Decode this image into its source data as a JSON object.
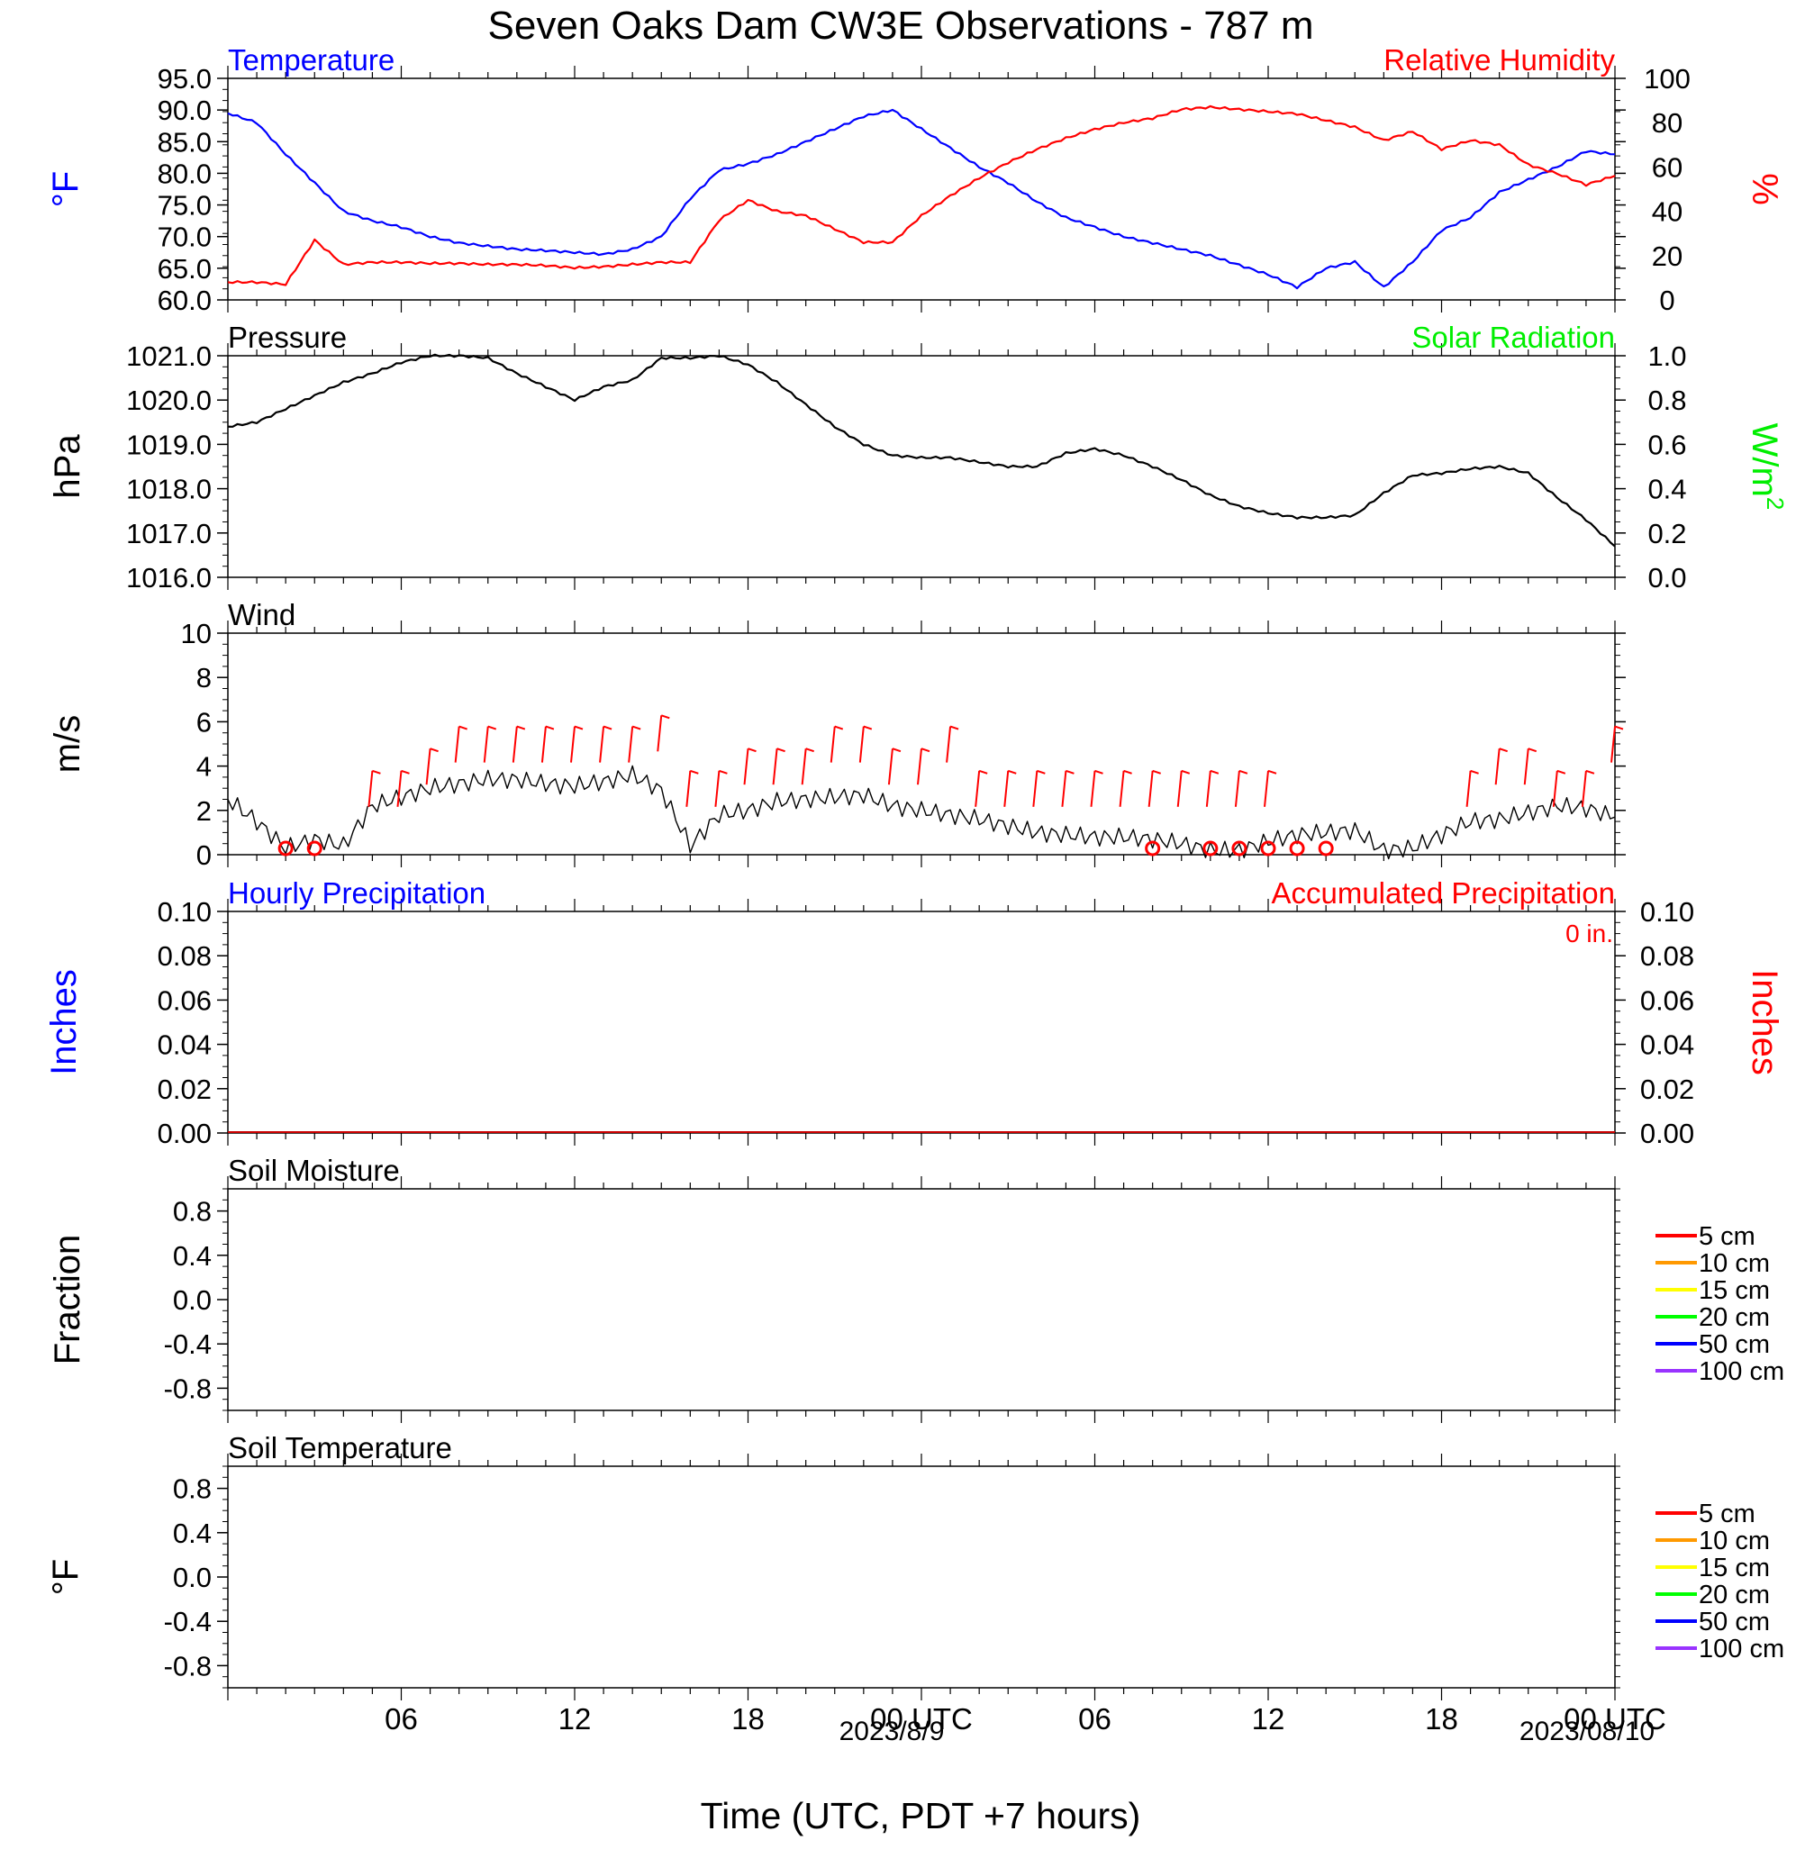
{
  "title": "Seven Oaks Dam CW3E Observations - 787 m",
  "xlabel": "Time (UTC, PDT +7 hours)",
  "colors": {
    "temperature": "#0000ff",
    "humidity": "#ff0000",
    "pressure": "#000000",
    "solar": "#00ee00",
    "wind": "#000000",
    "barb": "#ff0000",
    "accum": "#cc0000",
    "s5": "#ff0000",
    "s10": "#ff9900",
    "s15": "#ffff00",
    "s20": "#00ff00",
    "s50": "#0000ff",
    "s100": "#9933ff"
  },
  "x_ticks": [
    "06",
    "12",
    "18",
    "00 UTC",
    "06",
    "12",
    "18",
    "00 UTC"
  ],
  "date_labels": [
    "2023/8/9",
    "2023/08/10"
  ],
  "chart_data": [
    {
      "type": "line",
      "title_left": "Temperature",
      "title_right": "Relative Humidity",
      "ylabel_left": "°F",
      "ylabel_right": "%",
      "ylim": [
        60,
        95
      ],
      "ylim_right": [
        0,
        100
      ],
      "yticks_left": [
        "95.0",
        "90.0",
        "85.0",
        "80.0",
        "75.0",
        "70.0",
        "65.0",
        "60.0"
      ],
      "yticks_right": [
        "100",
        "80",
        "60",
        "40",
        "20",
        "0"
      ],
      "x_hours": [
        0,
        1,
        2,
        3,
        4,
        5,
        6,
        7,
        8,
        9,
        10,
        11,
        12,
        13,
        14,
        15,
        16,
        17,
        18,
        19,
        20,
        21,
        22,
        23,
        24,
        25,
        26,
        27,
        28,
        29,
        30,
        31,
        32,
        33,
        34,
        35,
        36,
        37,
        38,
        39,
        40,
        41,
        42,
        43,
        44,
        45,
        46,
        47,
        48
      ],
      "series": [
        {
          "name": "Temperature",
          "axis": "left",
          "values": [
            89.5,
            88,
            83,
            78.5,
            74,
            72.5,
            71.5,
            70,
            69,
            68.5,
            68,
            67.8,
            67.5,
            67.2,
            68,
            70,
            76,
            80.5,
            81.5,
            83,
            85,
            87,
            89,
            90,
            87,
            84,
            81,
            78.5,
            75.5,
            73,
            71.5,
            70,
            69,
            68,
            67,
            65.5,
            64,
            62,
            65,
            66,
            62,
            66,
            71,
            73,
            77,
            79,
            81,
            83.5,
            83
          ]
        },
        {
          "name": "Relative Humidity",
          "axis": "right",
          "values": [
            8,
            8,
            7,
            27,
            16,
            17,
            17,
            16.5,
            16.5,
            16,
            16,
            15.5,
            14.5,
            15,
            16,
            17,
            17,
            36,
            45,
            40,
            38,
            32,
            26,
            26,
            38,
            47,
            55,
            62,
            68,
            73,
            77,
            80,
            82,
            86,
            87,
            86,
            85,
            84,
            81,
            78,
            72,
            76,
            68,
            72,
            70,
            61,
            57,
            52,
            56
          ]
        }
      ]
    },
    {
      "type": "line",
      "title_left": "Pressure",
      "title_right": "Solar Radiation",
      "ylabel_left": "hPa",
      "ylabel_right": "W/m",
      "ylabel_right_superscript": "2",
      "ylim": [
        1016,
        1021
      ],
      "ylim_right": [
        0,
        1
      ],
      "yticks_left": [
        "1021.0",
        "1020.0",
        "1019.0",
        "1018.0",
        "1017.0",
        "1016.0"
      ],
      "yticks_right": [
        "1.0",
        "0.8",
        "0.6",
        "0.4",
        "0.2",
        "0.0"
      ],
      "x_hours": [
        0,
        1,
        2,
        3,
        4,
        5,
        6,
        7,
        8,
        9,
        10,
        11,
        12,
        13,
        14,
        15,
        16,
        17,
        18,
        19,
        20,
        21,
        22,
        23,
        24,
        25,
        26,
        27,
        28,
        29,
        30,
        31,
        32,
        33,
        34,
        35,
        36,
        37,
        38,
        39,
        40,
        41,
        42,
        43,
        44,
        45,
        46,
        47,
        48
      ],
      "series": [
        {
          "name": "Pressure",
          "axis": "left",
          "values": [
            1019.4,
            1019.5,
            1019.8,
            1020.1,
            1020.4,
            1020.6,
            1020.85,
            1021,
            1021,
            1020.95,
            1020.6,
            1020.3,
            1020.0,
            1020.3,
            1020.45,
            1020.95,
            1020.95,
            1021,
            1020.8,
            1020.4,
            1019.9,
            1019.4,
            1019,
            1018.75,
            1018.7,
            1018.7,
            1018.6,
            1018.5,
            1018.5,
            1018.8,
            1018.9,
            1018.75,
            1018.5,
            1018.2,
            1017.85,
            1017.6,
            1017.45,
            1017.35,
            1017.35,
            1017.4,
            1017.9,
            1018.3,
            1018.35,
            1018.45,
            1018.5,
            1018.35,
            1017.8,
            1017.3,
            1016.7
          ]
        }
      ]
    },
    {
      "type": "line",
      "title_left": "Wind",
      "ylabel_left": "m/s",
      "ylim": [
        0,
        10
      ],
      "yticks_left": [
        "10",
        "8",
        "6",
        "4",
        "2",
        "0"
      ],
      "x_hours": [
        0,
        1,
        2,
        3,
        4,
        5,
        6,
        7,
        8,
        9,
        10,
        11,
        12,
        13,
        14,
        15,
        16,
        17,
        18,
        19,
        20,
        21,
        22,
        23,
        24,
        25,
        26,
        27,
        28,
        29,
        30,
        31,
        32,
        33,
        34,
        35,
        36,
        37,
        38,
        39,
        40,
        41,
        42,
        43,
        44,
        45,
        46,
        47,
        48
      ],
      "series": [
        {
          "name": "Wind speed",
          "values": [
            2.5,
            1.5,
            0.3,
            0.7,
            0.4,
            2.2,
            2.6,
            3.0,
            3.2,
            3.4,
            3.4,
            3.2,
            3.1,
            3.3,
            3.6,
            2.9,
            0.4,
            1.8,
            2.0,
            2.4,
            2.5,
            2.6,
            2.7,
            2.2,
            2.0,
            1.8,
            1.6,
            1.3,
            1.0,
            0.9,
            0.8,
            0.8,
            0.7,
            0.5,
            0.2,
            0.2,
            0.6,
            0.9,
            1.0,
            1.1,
            0.2,
            0.3,
            0.9,
            1.5,
            1.6,
            1.9,
            2.2,
            2.1,
            1.7
          ]
        }
      ],
      "barbs_x_hours": [
        5,
        6,
        7,
        8,
        9,
        10,
        11,
        12,
        13,
        14,
        15,
        16,
        17,
        18,
        19,
        20,
        21,
        22,
        23,
        24,
        25,
        26,
        27,
        28,
        29,
        30,
        31,
        32,
        33,
        34,
        35,
        36,
        43,
        44,
        45,
        46,
        47,
        48
      ],
      "barbs_speed": [
        2,
        2,
        3,
        4,
        4,
        4,
        4,
        4,
        4,
        4,
        4.5,
        2,
        2,
        3,
        3,
        3,
        4,
        4,
        3,
        3,
        4,
        2,
        2,
        2,
        2,
        2,
        2,
        2,
        2,
        2,
        2,
        2,
        2,
        3,
        3,
        2,
        2,
        4
      ],
      "calm_x_hours": [
        2,
        3,
        32,
        34,
        35,
        36,
        37,
        38
      ]
    },
    {
      "type": "bar",
      "title_left": "Hourly Precipitation",
      "title_right": "Accumulated Precipitation",
      "ylabel_left": "Inches",
      "ylabel_right": "Inches",
      "annotation": "0 in.",
      "ylim": [
        0,
        0.1
      ],
      "ylim_right": [
        0,
        0.1
      ],
      "yticks_left": [
        "0.10",
        "0.08",
        "0.06",
        "0.04",
        "0.02",
        "0.00"
      ],
      "yticks_right": [
        "0.10",
        "0.08",
        "0.06",
        "0.04",
        "0.02",
        "0.00"
      ],
      "series": [
        {
          "name": "Hourly Precipitation",
          "values": []
        },
        {
          "name": "Accumulated Precipitation",
          "values": [
            0,
            0
          ]
        }
      ]
    },
    {
      "type": "line",
      "title_left": "Soil Moisture",
      "ylabel_left": "Fraction",
      "ylim": [
        -1,
        1
      ],
      "yticks_left": [
        "0.8",
        "0.4",
        "0.0",
        "-0.4",
        "-0.8"
      ],
      "legend": [
        "5 cm",
        "10 cm",
        "15 cm",
        "20 cm",
        "50 cm",
        "100 cm"
      ],
      "series": []
    },
    {
      "type": "line",
      "title_left": "Soil Temperature",
      "ylabel_left": "°F",
      "ylim": [
        -1,
        1
      ],
      "yticks_left": [
        "0.8",
        "0.4",
        "0.0",
        "-0.4",
        "-0.8"
      ],
      "legend": [
        "5 cm",
        "10 cm",
        "15 cm",
        "20 cm",
        "50 cm",
        "100 cm"
      ],
      "series": []
    }
  ]
}
